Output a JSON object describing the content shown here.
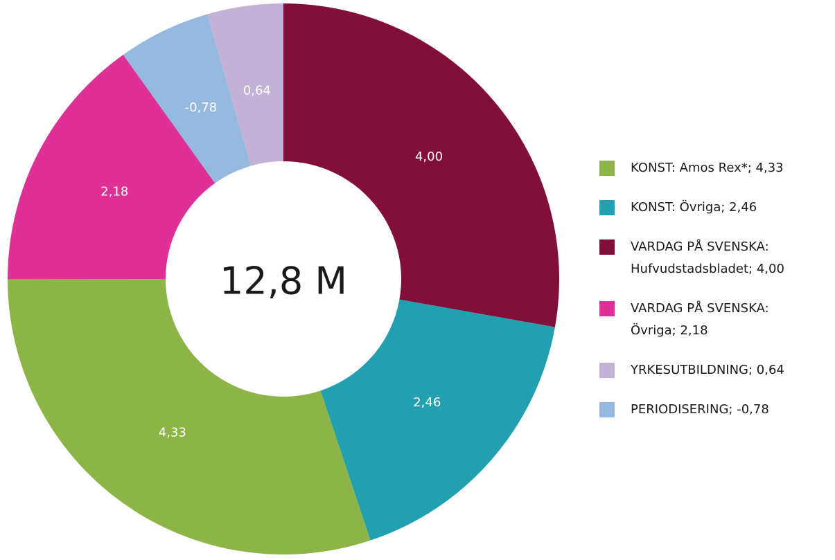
{
  "chart_data": {
    "type": "donut",
    "center_label": "12,8 M",
    "categories": [
      [
        "KONST: Amos Rex*; 4,33"
      ],
      [
        "KONST: Övriga; 2,46"
      ],
      [
        "VARDAG PÅ SVENSKA:",
        "Hufvudstadsbladet; 4,00"
      ],
      [
        "VARDAG PÅ SVENSKA:",
        "Övriga; 2,18"
      ],
      [
        "YRKESUTBILDNING; 0,64"
      ],
      [
        "PERIODISERING; -0,78"
      ]
    ],
    "values": [
      4.33,
      2.46,
      4.0,
      2.18,
      0.64,
      -0.78
    ],
    "value_labels": [
      "4,33",
      "2,46",
      "4,00",
      "2,18",
      "0,64",
      "-0,78"
    ],
    "colors": [
      "#8db446",
      "#22a0b0",
      "#820f3a",
      "#de3096",
      "#c3b1d6",
      "#96badf"
    ],
    "legend": "right"
  }
}
